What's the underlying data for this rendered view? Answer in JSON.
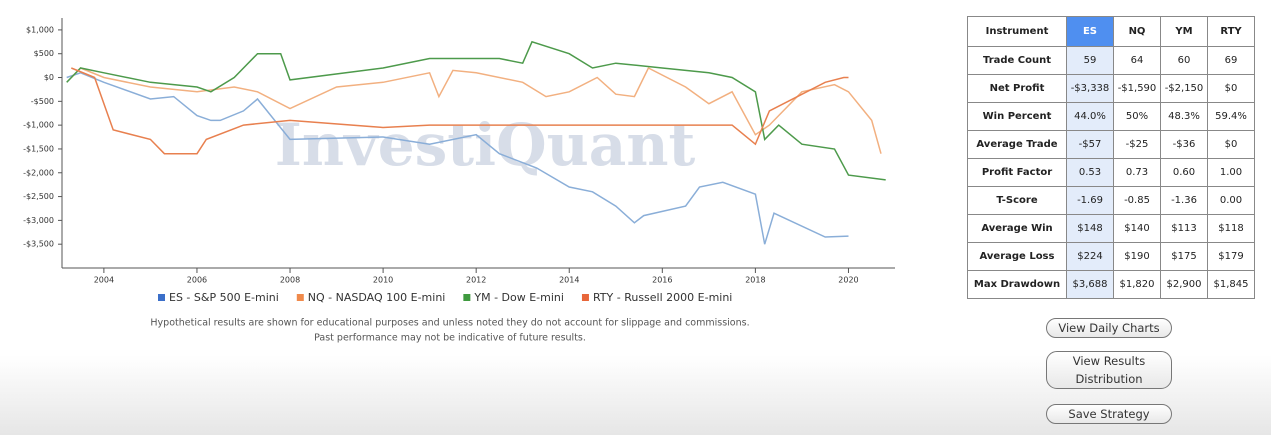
{
  "chart_data": {
    "type": "line",
    "watermark": "InvestiQuant",
    "xlim": [
      2003.1,
      2021
    ],
    "xticks": [
      2004,
      2006,
      2008,
      2010,
      2012,
      2014,
      2016,
      2018,
      2020
    ],
    "ylim": [
      -4000,
      1250
    ],
    "yticks": [
      {
        "value": 1000,
        "label": "$1,000"
      },
      {
        "value": 500,
        "label": "$500"
      },
      {
        "value": 0,
        "label": "$0"
      },
      {
        "value": -500,
        "label": "-$500"
      },
      {
        "value": -1000,
        "label": "-$1,000"
      },
      {
        "value": -1500,
        "label": "-$1,500"
      },
      {
        "value": -2000,
        "label": "-$2,000"
      },
      {
        "value": -2500,
        "label": "-$2,500"
      },
      {
        "value": -3000,
        "label": "-$3,000"
      },
      {
        "value": -3500,
        "label": "-$3,500"
      }
    ],
    "legend": "bottom",
    "series": [
      {
        "name": "ES - S&P 500 E-mini",
        "color": "#8aaed8",
        "legend_color": "#3b6fc9",
        "x": [
          2003.2,
          2003.5,
          2004,
          2005,
          2005.5,
          2006,
          2006.3,
          2006.5,
          2007,
          2007.3,
          2008,
          2010,
          2011,
          2012,
          2012.5,
          2013.3,
          2014,
          2014.5,
          2015,
          2015.4,
          2015.6,
          2016.5,
          2016.8,
          2017.3,
          2018,
          2018.2,
          2018.4,
          2019.5,
          2020
        ],
        "values": [
          0,
          100,
          -100,
          -450,
          -400,
          -800,
          -900,
          -900,
          -700,
          -450,
          -1300,
          -1250,
          -1400,
          -1200,
          -1600,
          -1900,
          -2300,
          -2400,
          -2700,
          -3050,
          -2900,
          -2700,
          -2300,
          -2200,
          -2450,
          -3500,
          -2850,
          -3350,
          -3330
        ]
      },
      {
        "name": "NQ - NASDAQ 100 E-mini",
        "color": "#f2b080",
        "legend_color": "#f08a4b",
        "x": [
          2003.3,
          2003.5,
          2004,
          2005,
          2006,
          2006.8,
          2007.3,
          2008,
          2009,
          2010,
          2011,
          2011.2,
          2011.5,
          2012,
          2013,
          2013.5,
          2014,
          2014.6,
          2015,
          2015.4,
          2015.7,
          2016.5,
          2017,
          2017.5,
          2018,
          2018.3,
          2019,
          2019.7,
          2020,
          2020.5,
          2020.7
        ],
        "values": [
          0,
          200,
          0,
          -200,
          -300,
          -200,
          -300,
          -650,
          -200,
          -100,
          100,
          -400,
          150,
          100,
          -100,
          -400,
          -300,
          0,
          -350,
          -400,
          200,
          -200,
          -550,
          -300,
          -1200,
          -1000,
          -300,
          -150,
          -300,
          -900,
          -1600
        ]
      },
      {
        "name": "YM - Dow E-mini",
        "color": "#4d9a4b",
        "legend_color": "#3f9a3f",
        "x": [
          2003.2,
          2003.5,
          2004,
          2005,
          2006,
          2006.3,
          2006.8,
          2007,
          2007.3,
          2007.8,
          2008,
          2010,
          2011,
          2012,
          2012.5,
          2013,
          2013.2,
          2014,
          2014.5,
          2015,
          2016,
          2017,
          2017.5,
          2018,
          2018.2,
          2018.5,
          2019,
          2019.7,
          2020,
          2020.8
        ],
        "values": [
          -100,
          200,
          100,
          -100,
          -200,
          -300,
          0,
          200,
          500,
          500,
          -50,
          200,
          400,
          400,
          400,
          300,
          750,
          500,
          200,
          300,
          200,
          100,
          0,
          -300,
          -1300,
          -1000,
          -1400,
          -1500,
          -2050,
          -2150
        ]
      },
      {
        "name": "RTY - Russell 2000 E-mini",
        "color": "#e8804f",
        "legend_color": "#e8663a",
        "x": [
          2003.3,
          2003.8,
          2004.2,
          2005,
          2005.3,
          2006,
          2006.2,
          2007,
          2008,
          2010,
          2011,
          2012,
          2014,
          2016,
          2017.5,
          2018,
          2018.3,
          2019.5,
          2019.9,
          2020
        ],
        "values": [
          200,
          0,
          -1100,
          -1300,
          -1600,
          -1600,
          -1300,
          -1000,
          -900,
          -1050,
          -1000,
          -1000,
          -1000,
          -1000,
          -1000,
          -1400,
          -700,
          -100,
          0,
          0
        ]
      }
    ],
    "footnote": [
      "Hypothetical results are shown for educational purposes and unless noted they do not account for slippage and commissions.",
      "Past performance may not be indicative of future results."
    ]
  },
  "table": {
    "header": [
      "Instrument",
      "ES",
      "NQ",
      "YM",
      "RTY"
    ],
    "rows": [
      [
        "Trade Count",
        "59",
        "64",
        "60",
        "69"
      ],
      [
        "Net Profit",
        "-$3,338",
        "-$1,590",
        "-$2,150",
        "$0"
      ],
      [
        "Win Percent",
        "44.0%",
        "50%",
        "48.3%",
        "59.4%"
      ],
      [
        "Average Trade",
        "-$57",
        "-$25",
        "-$36",
        "$0"
      ],
      [
        "Profit Factor",
        "0.53",
        "0.73",
        "0.60",
        "1.00"
      ],
      [
        "T-Score",
        "-1.69",
        "-0.85",
        "-1.36",
        "0.00"
      ],
      [
        "Average Win",
        "$148",
        "$140",
        "$113",
        "$118"
      ],
      [
        "Average Loss",
        "$224",
        "$190",
        "$175",
        "$179"
      ],
      [
        "Max Drawdown",
        "$3,688",
        "$1,820",
        "$2,900",
        "$1,845"
      ]
    ]
  },
  "buttons": [
    [
      "View Daily Charts"
    ],
    [
      "View Results",
      "Distribution"
    ],
    [
      "Save Strategy"
    ]
  ]
}
